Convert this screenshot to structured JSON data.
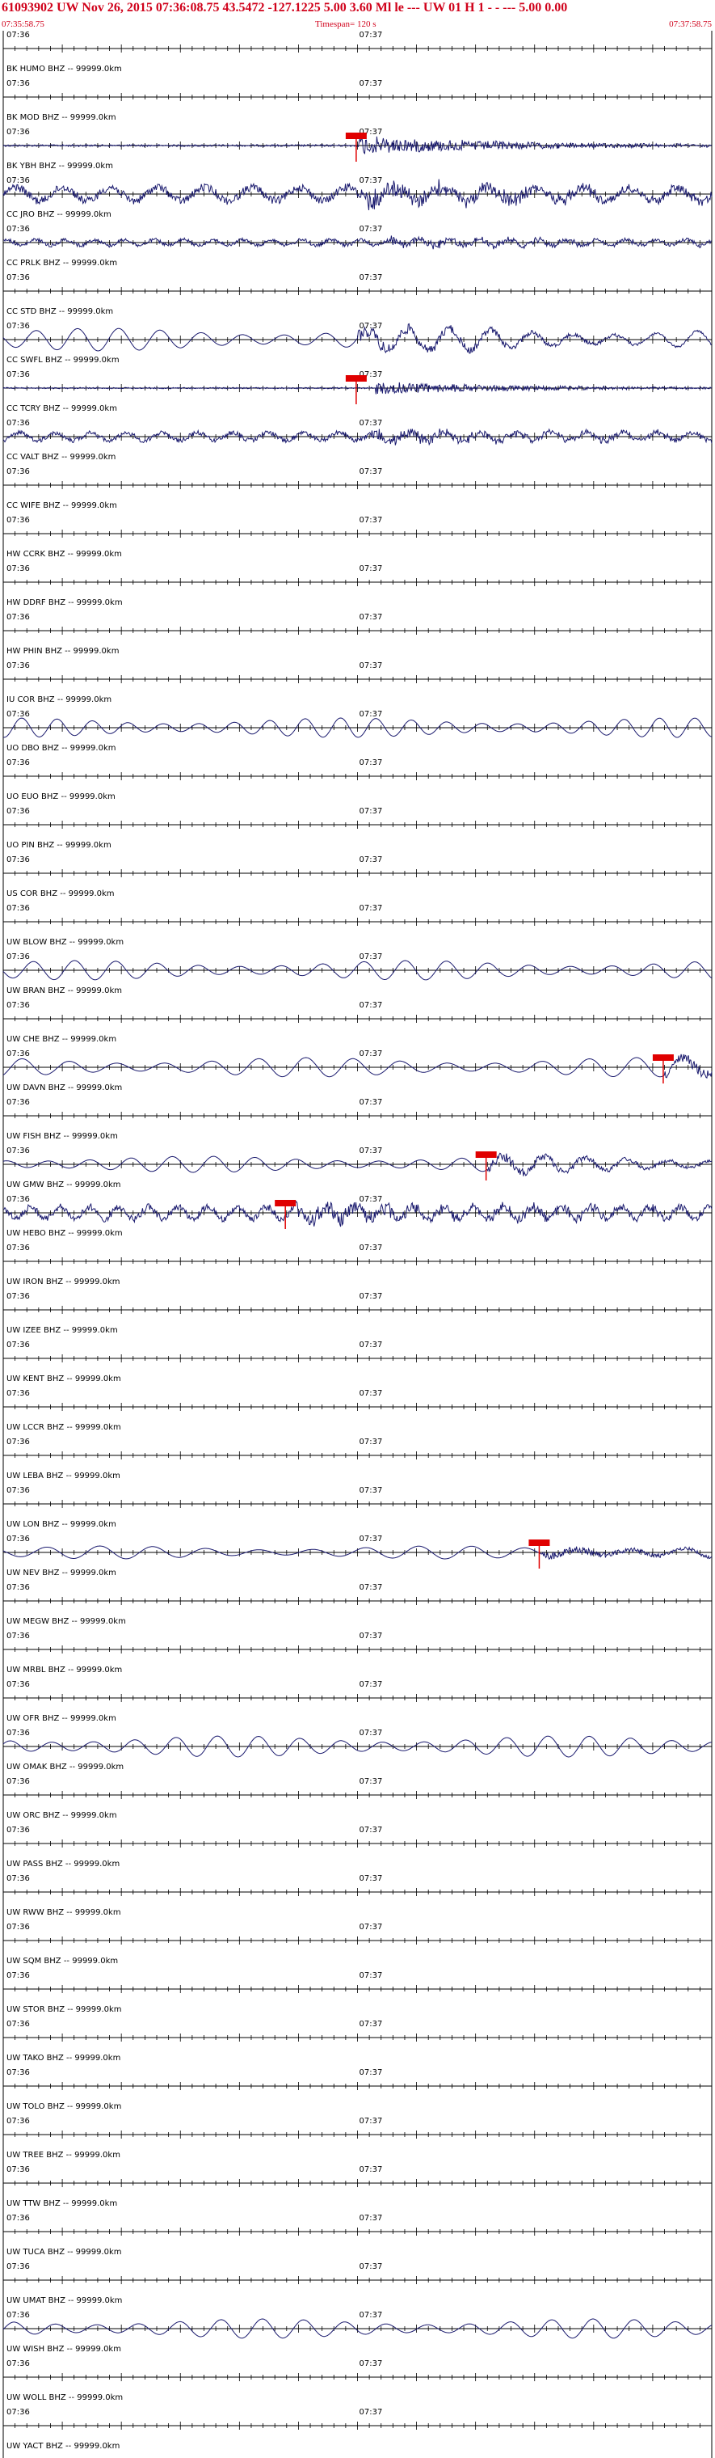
{
  "header": {
    "line1": "61093902 UW Nov 26, 2015 07:36:08.75   43.5472 -127.1225  5.00 3.60 Ml le    ---      UW 01 H    1   -  -  ---   5.00 0.00",
    "start_time": "07:35:58.75",
    "timespan": "Timespan= 120 s",
    "end_time": "07:37:58.75"
  },
  "colors": {
    "header_red": "#d0021b",
    "trace": "#1a1a6e",
    "pick": "#e00000",
    "grid": "#000000"
  },
  "chart_data": {
    "type": "line",
    "title": "61093902 UW Nov 26, 2015 07:36:08.75",
    "timespan_s": 120,
    "tick_labels": [
      "07:36",
      "07:37"
    ],
    "x_range_s": [
      0,
      120
    ],
    "grid": "ticks",
    "traces": [
      {
        "label": "BK HUMO BHZ -- 99999.0km",
        "signal": "none"
      },
      {
        "label": "BK MOD BHZ -- 99999.0km",
        "signal": "none"
      },
      {
        "label": "BK YBH BHZ -- 99999.0km",
        "signal": "quake",
        "amp": 3,
        "onset_s": 60,
        "pick_s": 58
      },
      {
        "label": "CC JRO BHZ -- 99999.0km",
        "signal": "noisy",
        "amp": 14,
        "period": 8,
        "onset_s": 60
      },
      {
        "label": "CC PRLK BHZ -- 99999.0km",
        "signal": "noisy",
        "amp": 6,
        "period": 5,
        "onset_s": 65
      },
      {
        "label": "CC STD BHZ -- 99999.0km",
        "signal": "none"
      },
      {
        "label": "CC SWFL BHZ -- 99999.0km",
        "signal": "wave",
        "amp": 14,
        "period": 7,
        "onset_s": 60
      },
      {
        "label": "CC TCRY BHZ -- 99999.0km",
        "signal": "quake",
        "amp": 2,
        "onset_s": 63,
        "pick_s": 58
      },
      {
        "label": "CC VALT BHZ -- 99999.0km",
        "signal": "noisy",
        "amp": 8,
        "period": 6,
        "onset_s": 62
      },
      {
        "label": "CC WIFE BHZ -- 99999.0km",
        "signal": "none"
      },
      {
        "label": "HW CCRK BHZ -- 99999.0km",
        "signal": "none"
      },
      {
        "label": "HW DDRF BHZ -- 99999.0km",
        "signal": "none"
      },
      {
        "label": "HW PHIN BHZ -- 99999.0km",
        "signal": "none"
      },
      {
        "label": "IU COR BHZ -- 99999.0km",
        "signal": "none"
      },
      {
        "label": "UO DBO BHZ -- 99999.0km",
        "signal": "wave",
        "amp": 12,
        "period": 6
      },
      {
        "label": "UO EUO BHZ -- 99999.0km",
        "signal": "none"
      },
      {
        "label": "UO PIN BHZ -- 99999.0km",
        "signal": "none"
      },
      {
        "label": "US COR BHZ -- 99999.0km",
        "signal": "none"
      },
      {
        "label": "UW BLOW BHZ -- 99999.0km",
        "signal": "none"
      },
      {
        "label": "UW BRAN BHZ -- 99999.0km",
        "signal": "wave",
        "amp": 12,
        "period": 7
      },
      {
        "label": "UW CHE BHZ -- 99999.0km",
        "signal": "none"
      },
      {
        "label": "UW DAVN BHZ -- 99999.0km",
        "signal": "wave",
        "amp": 12,
        "period": 8,
        "onset_s": 112,
        "pick_s": 110
      },
      {
        "label": "UW FISH BHZ -- 99999.0km",
        "signal": "none"
      },
      {
        "label": "UW GMW BHZ -- 99999.0km",
        "signal": "wave",
        "amp": 10,
        "period": 7,
        "onset_s": 82,
        "pick_s": 80
      },
      {
        "label": "UW HEBO BHZ -- 99999.0km",
        "signal": "noisy",
        "amp": 12,
        "period": 5,
        "onset_s": 49,
        "pick_s": 46
      },
      {
        "label": "UW IRON BHZ -- 99999.0km",
        "signal": "none"
      },
      {
        "label": "UW IZEE BHZ -- 99999.0km",
        "signal": "none"
      },
      {
        "label": "UW KENT BHZ -- 99999.0km",
        "signal": "none"
      },
      {
        "label": "UW LCCR BHZ -- 99999.0km",
        "signal": "none"
      },
      {
        "label": "UW LEBA BHZ -- 99999.0km",
        "signal": "none"
      },
      {
        "label": "UW LON BHZ -- 99999.0km",
        "signal": "none"
      },
      {
        "label": "UW NEV BHZ -- 99999.0km",
        "signal": "wave",
        "amp": 8,
        "period": 9,
        "onset_s": 91,
        "pick_s": 89
      },
      {
        "label": "UW MEGW BHZ -- 99999.0km",
        "signal": "none"
      },
      {
        "label": "UW MRBL BHZ -- 99999.0km",
        "signal": "none"
      },
      {
        "label": "UW OFR BHZ -- 99999.0km",
        "signal": "none"
      },
      {
        "label": "UW OMAK BHZ -- 99999.0km",
        "signal": "wave",
        "amp": 13,
        "period": 7
      },
      {
        "label": "UW ORC BHZ -- 99999.0km",
        "signal": "none"
      },
      {
        "label": "UW PASS BHZ -- 99999.0km",
        "signal": "none"
      },
      {
        "label": "UW RWW BHZ -- 99999.0km",
        "signal": "none"
      },
      {
        "label": "UW SQM BHZ -- 99999.0km",
        "signal": "none"
      },
      {
        "label": "UW STOR BHZ -- 99999.0km",
        "signal": "none"
      },
      {
        "label": "UW TAKO BHZ -- 99999.0km",
        "signal": "none"
      },
      {
        "label": "UW TOLO BHZ -- 99999.0km",
        "signal": "none"
      },
      {
        "label": "UW TREE BHZ -- 99999.0km",
        "signal": "none"
      },
      {
        "label": "UW TTW BHZ -- 99999.0km",
        "signal": "none"
      },
      {
        "label": "UW TUCA BHZ -- 99999.0km",
        "signal": "none"
      },
      {
        "label": "UW UMAT BHZ -- 99999.0km",
        "signal": "none"
      },
      {
        "label": "UW WISH BHZ -- 99999.0km",
        "signal": "wave",
        "amp": 12,
        "period": 7
      },
      {
        "label": "UW WOLL BHZ -- 99999.0km",
        "signal": "none"
      },
      {
        "label": "UW YACT BHZ -- 99999.0km",
        "signal": "none"
      }
    ]
  }
}
